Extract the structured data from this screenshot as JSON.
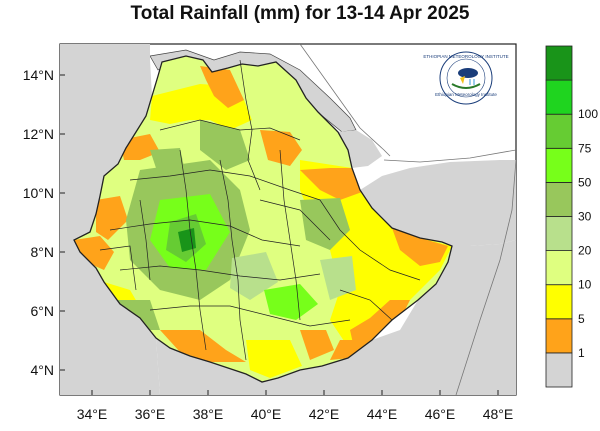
{
  "map": {
    "title": "Total Rainfall (mm) for 13-14 Apr 2025",
    "longitude_ticks": [
      "34°E",
      "36°E",
      "38°E",
      "40°E",
      "42°E",
      "44°E",
      "46°E",
      "48°E"
    ],
    "latitude_ticks": [
      "14°N",
      "12°N",
      "10°N",
      "8°N",
      "6°N",
      "4°N"
    ],
    "logo": {
      "arc_text": "ETHIOPIAN METEOROLOGY INSTITUTE",
      "caption": "Ethiopian Meteorology Institute"
    },
    "legend": {
      "bins": [
        {
          "label": "1",
          "color": "#d4d4d4"
        },
        {
          "label": "5",
          "color": "#ffa31a"
        },
        {
          "label": "10",
          "color": "#ffff00"
        },
        {
          "label": "20",
          "color": "#dfff80"
        },
        {
          "label": "30",
          "color": "#b8e08c"
        },
        {
          "label": "50",
          "color": "#98c75c"
        },
        {
          "label": "75",
          "color": "#77ff1a"
        },
        {
          "label": "100",
          "color": "#66cc33"
        },
        {
          "label": "",
          "color": "#1fd41f"
        },
        {
          "label": "",
          "color": "#199419"
        }
      ]
    },
    "colors": {
      "ocean_outside": "#ffffff",
      "land_no_rain": "#d4d4d4",
      "border": "#222222"
    }
  }
}
